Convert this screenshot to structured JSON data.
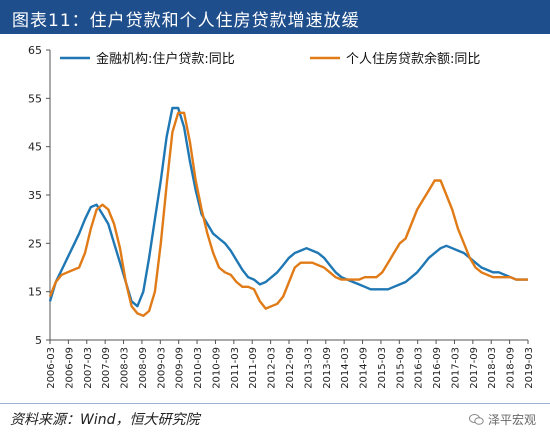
{
  "header": {
    "title": "图表11：住户贷款和个人住房贷款增速放缓"
  },
  "footer": {
    "source": "资料来源：Wind，恒大研究院",
    "watermark": "泽平宏观",
    "watermark_icon": "wechat-icon"
  },
  "chart_data": {
    "type": "line",
    "title": "",
    "xlabel": "",
    "ylabel": "",
    "ylim": [
      5,
      65
    ],
    "yticks": [
      5,
      15,
      25,
      35,
      45,
      55,
      65
    ],
    "xticks": [
      "2006-03",
      "2006-09",
      "2007-03",
      "2007-09",
      "2008-03",
      "2008-09",
      "2009-03",
      "2009-09",
      "2010-03",
      "2010-09",
      "2011-03",
      "2011-09",
      "2012-03",
      "2012-09",
      "2013-03",
      "2013-09",
      "2014-03",
      "2014-09",
      "2015-03",
      "2015-09",
      "2016-03",
      "2016-09",
      "2017-03",
      "2017-09",
      "2018-03",
      "2018-09",
      "2019-03"
    ],
    "grid": false,
    "legend": "top",
    "series": [
      {
        "name": "金融机构:住户贷款:同比",
        "color": "#1f77b4",
        "values": [
          13,
          17,
          19.5,
          22,
          24.5,
          27,
          30,
          32.5,
          33,
          31,
          29,
          25,
          21,
          17,
          13,
          12,
          15,
          22,
          30,
          38,
          47,
          53,
          53,
          49,
          42,
          36,
          31,
          29,
          27,
          26,
          25,
          23.5,
          21.5,
          19.5,
          18,
          17.5,
          16.5,
          17,
          18,
          19,
          20.5,
          22,
          23,
          23.5,
          24,
          23.5,
          23,
          22,
          20.5,
          19,
          18,
          17.5,
          17,
          16.5,
          16,
          15.5,
          15.5,
          15.5,
          15.5,
          16,
          16.5,
          17,
          18,
          19,
          20.5,
          22,
          23,
          24,
          24.5,
          24,
          23.5,
          23,
          22,
          21,
          20,
          19.5,
          19,
          19,
          18.5,
          18,
          17.5,
          17.5,
          17.5
        ]
      },
      {
        "name": "个人住房贷款余额:同比",
        "color": "#e07b17",
        "values": [
          14,
          17,
          18.5,
          19,
          19.5,
          20,
          23,
          28,
          32,
          33,
          32,
          29,
          24,
          17,
          12,
          10.5,
          10,
          11,
          15,
          25,
          37,
          48,
          52,
          52,
          46,
          38,
          32,
          27,
          23,
          20,
          19,
          18.5,
          17,
          16,
          16,
          15.5,
          13,
          11.5,
          12,
          12.5,
          14,
          17,
          20,
          21,
          21,
          21,
          20.5,
          20,
          19,
          18,
          17.5,
          17.5,
          17.5,
          17.5,
          18,
          18,
          18,
          19,
          21,
          23,
          25,
          26,
          29,
          32,
          34,
          36,
          38,
          38,
          35,
          32,
          28,
          25,
          22,
          20,
          19,
          18.5,
          18,
          18,
          18,
          18,
          17.5,
          17.5,
          17.5
        ]
      }
    ]
  }
}
